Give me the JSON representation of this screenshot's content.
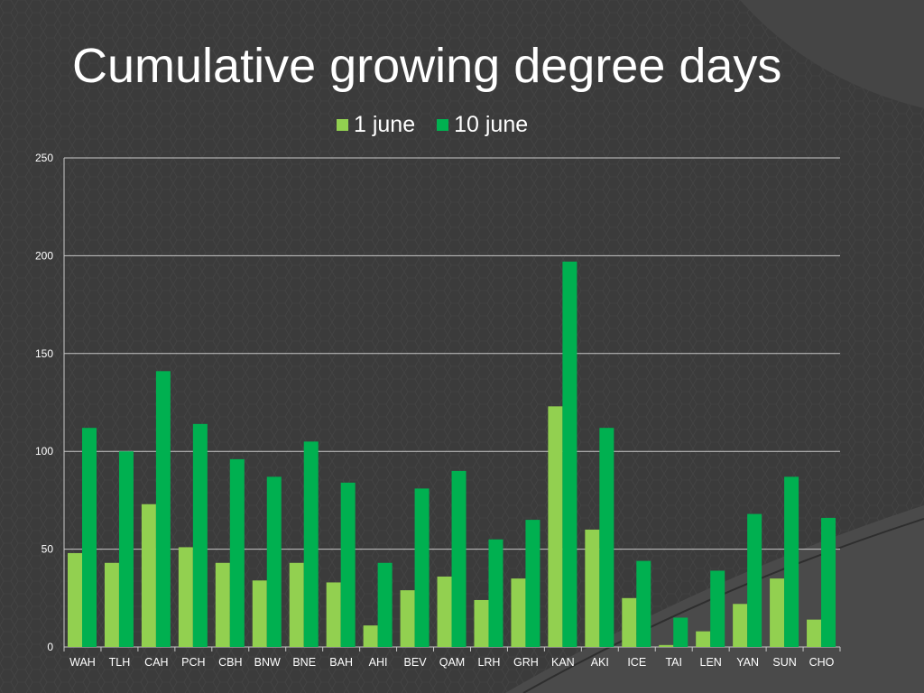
{
  "slide": {
    "title": "Cumulative growing degree days"
  },
  "chart_data": {
    "type": "bar",
    "title": "",
    "xlabel": "",
    "ylabel": "",
    "ylim": [
      0,
      250
    ],
    "yticks": [
      0,
      50,
      100,
      150,
      200,
      250
    ],
    "grid": true,
    "legend_position": "top",
    "categories": [
      "WAH",
      "TLH",
      "CAH",
      "PCH",
      "CBH",
      "BNW",
      "BNE",
      "BAH",
      "AHI",
      "BEV",
      "QAM",
      "LRH",
      "GRH",
      "KAN",
      "AKI",
      "ICE",
      "TAI",
      "LEN",
      "YAN",
      "SUN",
      "CHO"
    ],
    "series": [
      {
        "name": "1 june",
        "color": "#92d050",
        "values": [
          48,
          43,
          73,
          51,
          43,
          34,
          43,
          33,
          11,
          29,
          36,
          24,
          35,
          123,
          60,
          25,
          1,
          8,
          22,
          35,
          14
        ]
      },
      {
        "name": "10 june",
        "color": "#00b050",
        "values": [
          112,
          100,
          141,
          114,
          96,
          87,
          105,
          84,
          43,
          81,
          90,
          55,
          65,
          197,
          112,
          44,
          15,
          39,
          68,
          87,
          66
        ]
      }
    ]
  }
}
